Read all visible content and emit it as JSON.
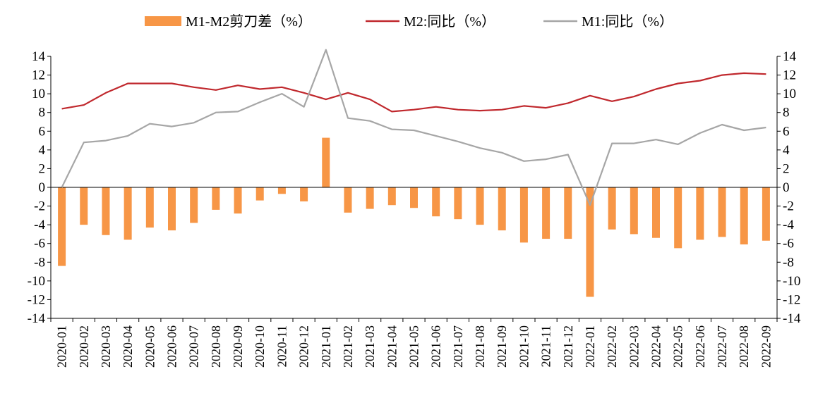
{
  "chart_data": {
    "type": "bar",
    "categories": [
      "2020-01",
      "2020-02",
      "2020-03",
      "2020-04",
      "2020-05",
      "2020-06",
      "2020-07",
      "2020-08",
      "2020-09",
      "2020-10",
      "2020-11",
      "2020-12",
      "2021-01",
      "2021-02",
      "2021-03",
      "2021-04",
      "2021-05",
      "2021-06",
      "2021-07",
      "2021-08",
      "2021-09",
      "2021-10",
      "2021-11",
      "2021-12",
      "2022-01",
      "2022-02",
      "2022-03",
      "2022-04",
      "2022-05",
      "2022-06",
      "2022-07",
      "2022-08",
      "2022-09"
    ],
    "series": [
      {
        "name": "M1-M2剪刀差（%）",
        "type": "bar",
        "color": "#F79646",
        "values": [
          -8.4,
          -4.0,
          -5.1,
          -5.6,
          -4.3,
          -4.6,
          -3.8,
          -2.4,
          -2.8,
          -1.4,
          -0.7,
          -1.5,
          5.3,
          -2.7,
          -2.3,
          -1.9,
          -2.2,
          -3.1,
          -3.4,
          -4.0,
          -4.6,
          -5.9,
          -5.5,
          -5.5,
          -11.7,
          -4.5,
          -5.0,
          -5.4,
          -6.5,
          -5.6,
          -5.3,
          -6.1,
          -5.7
        ]
      },
      {
        "name": "M2:同比（%）",
        "type": "line",
        "color": "#C0282D",
        "values": [
          8.4,
          8.8,
          10.1,
          11.1,
          11.1,
          11.1,
          10.7,
          10.4,
          10.9,
          10.5,
          10.7,
          10.1,
          9.4,
          10.1,
          9.4,
          8.1,
          8.3,
          8.6,
          8.3,
          8.2,
          8.3,
          8.7,
          8.5,
          9.0,
          9.8,
          9.2,
          9.7,
          10.5,
          11.1,
          11.4,
          12.0,
          12.2,
          12.1
        ]
      },
      {
        "name": "M1:同比（%）",
        "type": "line",
        "color": "#A6A6A6",
        "values": [
          0.0,
          4.8,
          5.0,
          5.5,
          6.8,
          6.5,
          6.9,
          8.0,
          8.1,
          9.1,
          10.0,
          8.6,
          14.7,
          7.4,
          7.1,
          6.2,
          6.1,
          5.5,
          4.9,
          4.2,
          3.7,
          2.8,
          3.0,
          3.5,
          -1.9,
          4.7,
          4.7,
          5.1,
          4.6,
          5.8,
          6.7,
          6.1,
          6.4
        ]
      }
    ],
    "yaxis_left": {
      "ticks": [
        "14",
        "12",
        "10",
        "8",
        "6",
        "4",
        "2",
        "0",
        "-2",
        "-4",
        "-6",
        "-8",
        "-10",
        "-12",
        "-14"
      ],
      "range": [
        -14,
        14
      ]
    },
    "yaxis_right": {
      "ticks": [
        "14",
        "12",
        "10",
        "8",
        "6",
        "4",
        "2",
        "0",
        "-2",
        "-4",
        "-6",
        "-8",
        "-10",
        "-12",
        "-14"
      ],
      "range": [
        -14,
        14
      ]
    },
    "title": "",
    "xlabel": "",
    "ylabel": "",
    "grid": false,
    "legend_position": "top-center"
  }
}
